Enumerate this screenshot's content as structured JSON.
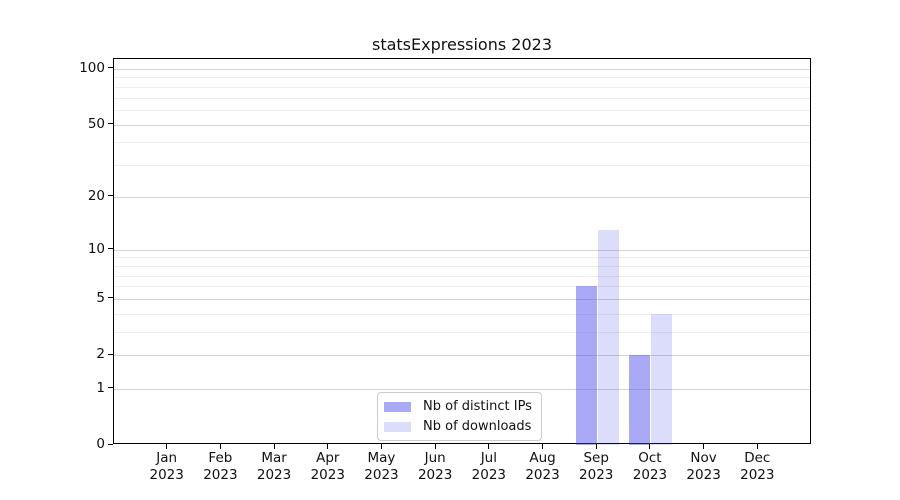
{
  "chart_data": {
    "type": "bar",
    "title": "statsExpressions 2023",
    "x_tick_labels": [
      {
        "month": "Jan",
        "year": "2023"
      },
      {
        "month": "Feb",
        "year": "2023"
      },
      {
        "month": "Mar",
        "year": "2023"
      },
      {
        "month": "Apr",
        "year": "2023"
      },
      {
        "month": "May",
        "year": "2023"
      },
      {
        "month": "Jun",
        "year": "2023"
      },
      {
        "month": "Jul",
        "year": "2023"
      },
      {
        "month": "Aug",
        "year": "2023"
      },
      {
        "month": "Sep",
        "year": "2023"
      },
      {
        "month": "Oct",
        "year": "2023"
      },
      {
        "month": "Nov",
        "year": "2023"
      },
      {
        "month": "Dec",
        "year": "2023"
      }
    ],
    "series": [
      {
        "name": "Nb of distinct IPs",
        "color": "rgba(60,60,232,0.44)",
        "values": [
          0,
          0,
          0,
          0,
          0,
          0,
          0,
          0,
          6,
          2,
          0,
          0
        ]
      },
      {
        "name": "Nb of downloads",
        "color": "rgba(60,60,232,0.18)",
        "values": [
          0,
          0,
          0,
          0,
          0,
          0,
          0,
          0,
          13,
          4,
          0,
          0
        ]
      }
    ],
    "y_axis": {
      "scale": "log1p",
      "label_ticks": [
        100,
        50,
        20,
        10,
        5,
        2,
        1,
        0
      ],
      "minor_gridlines": [
        90,
        80,
        70,
        60,
        40,
        30,
        9,
        8,
        7,
        6,
        4,
        3
      ],
      "ylim": [
        0,
        113
      ]
    },
    "grid": "horizontal",
    "legend_position": "inside lower center"
  }
}
